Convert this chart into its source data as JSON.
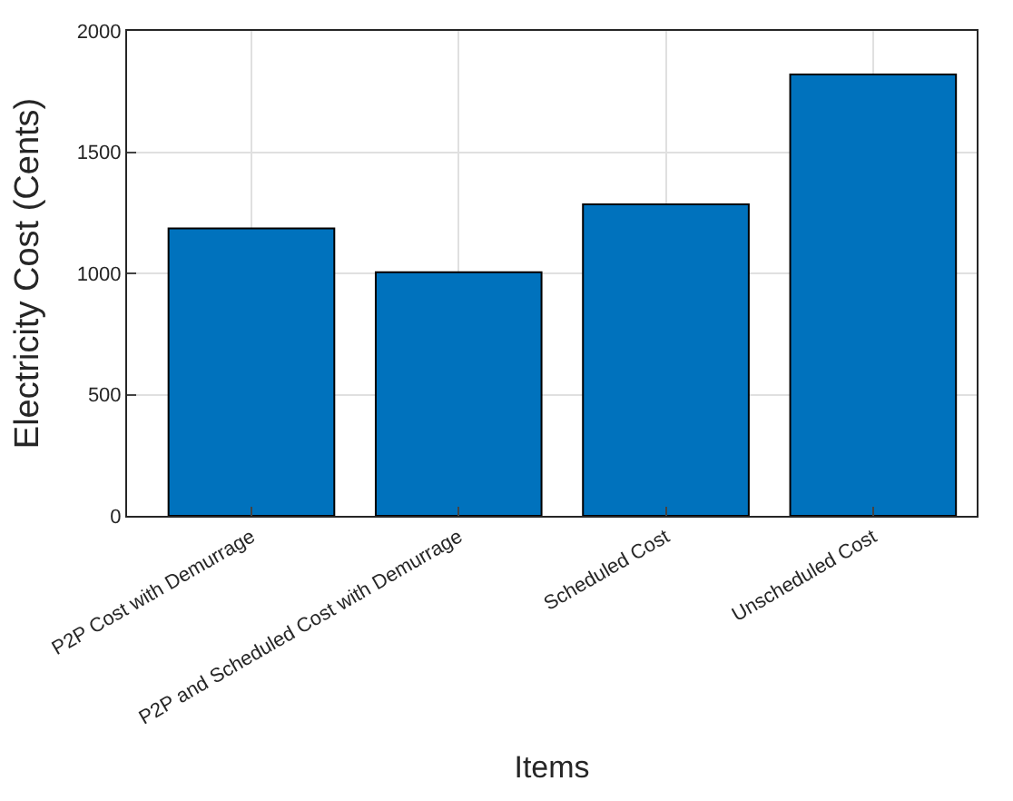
{
  "chart_data": {
    "type": "bar",
    "categories": [
      "P2P Cost with Demurrage",
      "P2P and Scheduled Cost with Demurrage",
      "Scheduled Cost",
      "Unscheduled Cost"
    ],
    "values": [
      1185,
      1005,
      1285,
      1820
    ],
    "color": "#0072bd",
    "xlabel": "Items",
    "ylabel": "Electricity Cost (Cents)",
    "ylim": [
      0,
      2000
    ],
    "yticks": [
      0,
      500,
      1000,
      1500,
      2000
    ],
    "grid": true
  }
}
